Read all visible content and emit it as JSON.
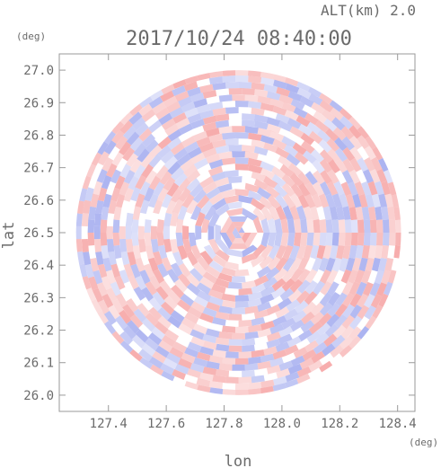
{
  "header": {
    "altitude_label": "ALT(km) 2.0",
    "timestamp": "2017/10/24 08:40:00"
  },
  "chart_data": {
    "type": "heatmap",
    "title": "2017/10/24 08:40:00",
    "subtitle": "ALT(km) 2.0",
    "xlabel": "lon",
    "ylabel": "lat",
    "x_unit": "(deg)",
    "y_unit": "(deg)",
    "xlim": [
      127.23,
      128.46
    ],
    "ylim": [
      25.95,
      27.05
    ],
    "x_ticks": [
      "127.4",
      "127.6",
      "127.8",
      "128.0",
      "128.2",
      "128.4"
    ],
    "y_ticks": [
      "26.0",
      "26.1",
      "26.2",
      "26.3",
      "26.4",
      "26.5",
      "26.6",
      "26.7",
      "26.8",
      "26.9",
      "27.0"
    ],
    "grid": false,
    "colormap": {
      "negative": "#a8b0f0",
      "zero": "#ffffff",
      "positive": "#f6a8a8"
    },
    "radar_center": {
      "lon": 127.85,
      "lat": 26.5
    },
    "radar_extent_deg_lat": 0.5
  }
}
